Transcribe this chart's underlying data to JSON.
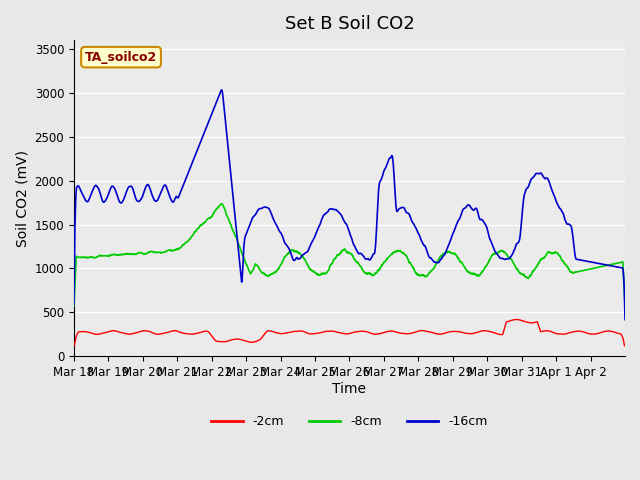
{
  "title": "Set B Soil CO2",
  "ylabel": "Soil CO2 (mV)",
  "xlabel": "Time",
  "legend_label": "TA_soilco2",
  "ylim": [
    0,
    3600
  ],
  "yticks": [
    0,
    500,
    1000,
    1500,
    2000,
    2500,
    3000,
    3500
  ],
  "x_tick_labels": [
    "Mar 18",
    "Mar 19",
    "Mar 20",
    "Mar 21",
    "Mar 22",
    "Mar 23",
    "Mar 24",
    "Mar 25",
    "Mar 26",
    "Mar 27",
    "Mar 28",
    "Mar 29",
    "Mar 30",
    "Mar 31",
    "Apr 1",
    "Apr 2"
  ],
  "series": {
    "red": {
      "label": "-2cm",
      "color": "#ff0000"
    },
    "green": {
      "label": "-8cm",
      "color": "#00cc00"
    },
    "blue": {
      "label": "-16cm",
      "color": "#0000cc"
    }
  },
  "bg_color": "#e8e8e8",
  "plot_bg": "#ebebeb",
  "title_fontsize": 13,
  "axis_fontsize": 10,
  "tick_fontsize": 8.5,
  "legend_fontsize": 9
}
